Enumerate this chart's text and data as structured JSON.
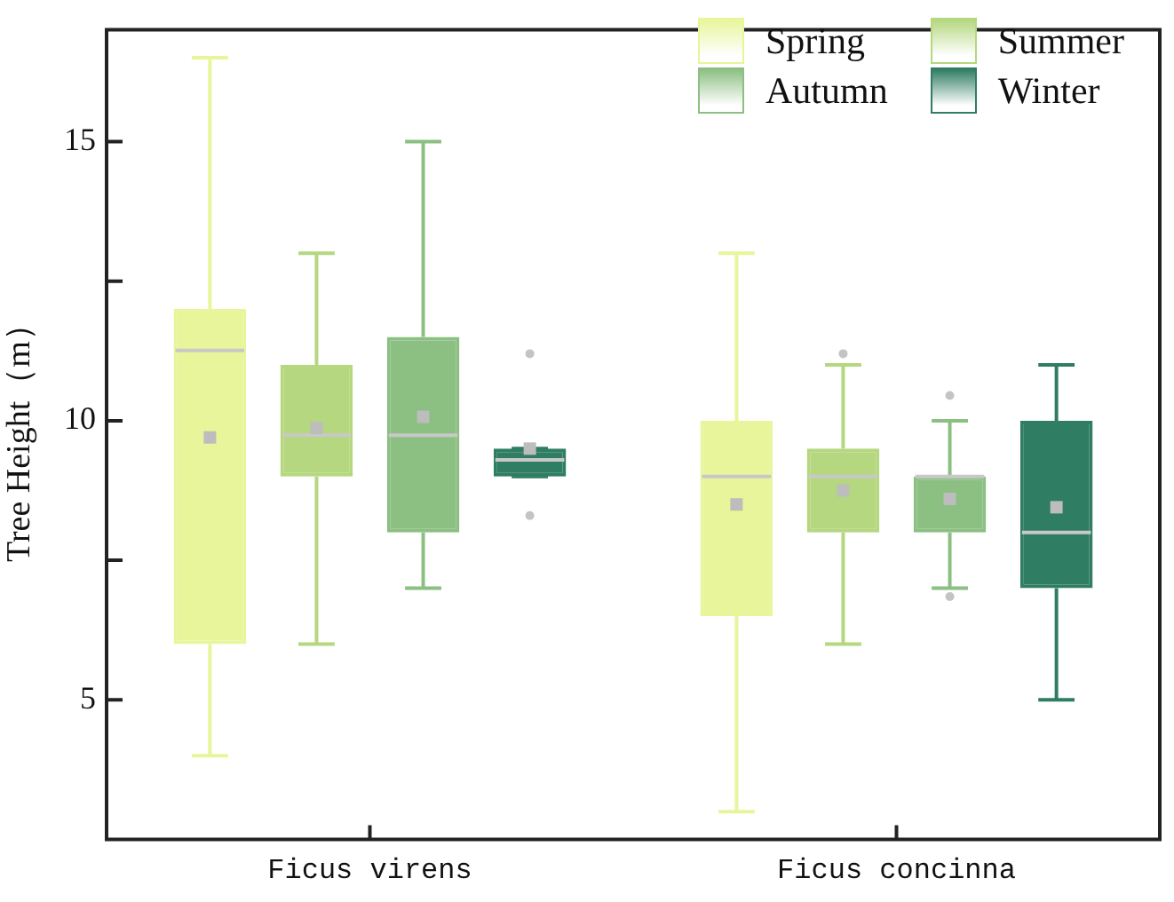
{
  "chart_data": {
    "type": "box",
    "ylabel": "Tree Height（m）",
    "categories": [
      "Ficus virens",
      "Ficus concinna"
    ],
    "ylim": [
      2.5,
      17
    ],
    "yticks": [
      5,
      {
        "value": 7.5,
        "label": null
      },
      10,
      {
        "value": 12.5,
        "label": null
      },
      15
    ],
    "grid": false,
    "legend": "top right",
    "marker": "square",
    "series": [
      {
        "name": "Spring",
        "color": "#e8f59a",
        "boxes": [
          {
            "low": 4.0,
            "q1": 6.0,
            "median": 11.26,
            "q3": 12.0,
            "high": 16.5,
            "mean": 9.7
          },
          {
            "low": 3.0,
            "q1": 6.5,
            "median": 9.0,
            "q3": 10.0,
            "high": 13.0,
            "mean": 8.5
          }
        ]
      },
      {
        "name": "Summer",
        "color": "#b5d77f",
        "boxes": [
          {
            "low": 6.0,
            "q1": 9.0,
            "median": 9.74,
            "q3": 11.0,
            "high": 13.0,
            "mean": 9.87
          },
          {
            "low": 6.0,
            "q1": 8.0,
            "median": 9.0,
            "q3": 9.5,
            "high": 11.0,
            "mean": 8.75,
            "outliers": [
              11.2
            ]
          }
        ]
      },
      {
        "name": "Autumn",
        "color": "#8cbf82",
        "boxes": [
          {
            "low": 7.0,
            "q1": 8.0,
            "median": 9.74,
            "q3": 11.5,
            "high": 15.0,
            "mean": 10.07
          },
          {
            "low": 7.0,
            "q1": 8.0,
            "median": 9.0,
            "q3": 9.0,
            "high": 10.0,
            "mean": 8.6,
            "outliers": [
              10.45,
              6.85
            ]
          }
        ]
      },
      {
        "name": "Winter",
        "color": "#2f7d62",
        "boxes": [
          {
            "low": 9.0,
            "q1": 9.0,
            "median": 9.3,
            "q3": 9.5,
            "high": 9.5,
            "mean": 9.5,
            "outliers": [
              11.2,
              8.3
            ]
          },
          {
            "low": 5.0,
            "q1": 7.0,
            "median": 8.0,
            "q3": 10.0,
            "high": 11.0,
            "mean": 8.45
          }
        ]
      }
    ]
  }
}
